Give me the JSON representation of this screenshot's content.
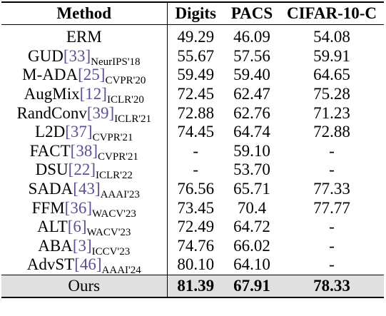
{
  "table": {
    "headers": {
      "method": "Method",
      "digits": "Digits",
      "pacs": "PACS",
      "cifar": "CIFAR-10-C"
    },
    "rows": [
      {
        "name": "ERM",
        "ref": "",
        "venue": "",
        "digits": "49.29",
        "pacs": "46.09",
        "cifar": "54.08"
      },
      {
        "name": "GUD",
        "ref": "33",
        "venue": "NeurIPS'18",
        "digits": "55.67",
        "pacs": "57.56",
        "cifar": "59.91"
      },
      {
        "name": "M-ADA",
        "ref": "25",
        "venue": "CVPR'20",
        "digits": "59.49",
        "pacs": "59.40",
        "cifar": "64.65"
      },
      {
        "name": "AugMix",
        "ref": "12",
        "venue": "ICLR'20",
        "digits": "72.45",
        "pacs": "62.47",
        "cifar": "75.28"
      },
      {
        "name": "RandConv",
        "ref": "39",
        "venue": "ICLR'21",
        "digits": "72.88",
        "pacs": "62.76",
        "cifar": "71.23"
      },
      {
        "name": "L2D",
        "ref": "37",
        "venue": "CVPR'21",
        "digits": "74.45",
        "pacs": "64.74",
        "cifar": "72.88"
      },
      {
        "name": "FACT",
        "ref": "38",
        "venue": "CVPR'21",
        "digits": "-",
        "pacs": "59.10",
        "cifar": "-"
      },
      {
        "name": "DSU",
        "ref": "22",
        "venue": "ICLR'22",
        "digits": "-",
        "pacs": "53.70",
        "cifar": "-"
      },
      {
        "name": "SADA",
        "ref": "43",
        "venue": "AAAI'23",
        "digits": "76.56",
        "pacs": "65.71",
        "cifar": "77.33"
      },
      {
        "name": "FFM",
        "ref": "36",
        "venue": "WACV'23",
        "digits": "73.45",
        "pacs": "70.4",
        "cifar": "77.77"
      },
      {
        "name": "ALT",
        "ref": "6",
        "venue": "WACV'23",
        "digits": "72.49",
        "pacs": "64.72",
        "cifar": "-"
      },
      {
        "name": "ABA",
        "ref": "3",
        "venue": "ICCV'23",
        "digits": "74.76",
        "pacs": "66.02",
        "cifar": "-"
      },
      {
        "name": "AdvST",
        "ref": "46",
        "venue": "AAAI'24",
        "digits": "80.10",
        "pacs": "64.10",
        "cifar": "-"
      }
    ],
    "ours": {
      "name": "Ours",
      "digits": "81.39",
      "pacs": "67.91",
      "cifar": "78.33"
    }
  },
  "colors": {
    "citation": "#5a4fa0",
    "highlight_row": "#e0e0e0"
  }
}
